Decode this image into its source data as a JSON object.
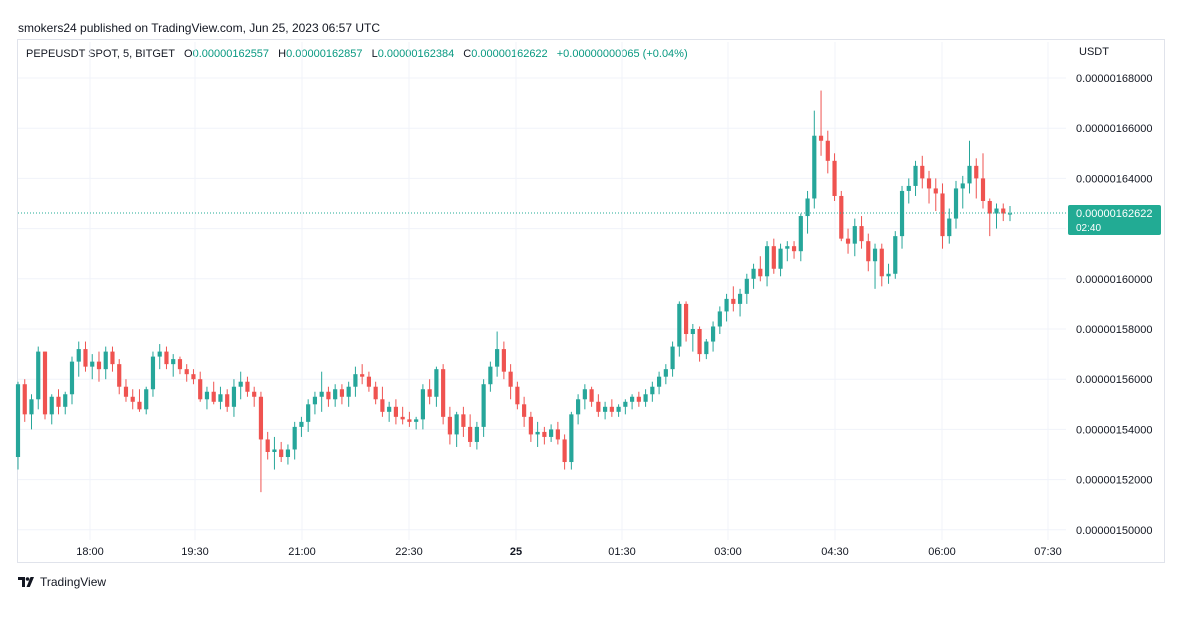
{
  "header": {
    "publisher_line": "smokers24 published on TradingView.com, Jun 25, 2023 06:57 UTC"
  },
  "legend": {
    "symbol": "PEPEUSDT SPOT, 5, BITGET",
    "open_key": "O",
    "open": "0.00000162557",
    "high_key": "H",
    "high": "0.00000162857",
    "low_key": "L",
    "low": "0.00000162384",
    "close_key": "C",
    "close": "0.00000162622",
    "change": "+0.00000000065 (+0.04%)"
  },
  "currency": "USDT",
  "footer": {
    "logo_icon": "tradingview-logo-icon",
    "brand": "TradingView"
  },
  "colors": {
    "up": "#26a69a",
    "down": "#ef5350",
    "grid": "#f0f3fa",
    "price_tag": "#22ab94"
  },
  "chart_data": {
    "type": "candlestick",
    "y_unit": "USDT",
    "ylim": [
      1.49e-06,
      1.69e-06
    ],
    "y_ticks": [
      1.5e-06,
      1.52e-06,
      1.54e-06,
      1.56e-06,
      1.58e-06,
      1.6e-06,
      1.62e-06,
      1.64e-06,
      1.66e-06,
      1.68e-06
    ],
    "y_tick_labels": [
      "0.00000150000",
      "0.00000152000",
      "0.00000154000",
      "0.00000156000",
      "0.00000158000",
      "0.00000160000",
      "0.00000162000",
      "0.00000164000",
      "0.00000166000",
      "0.00000168000"
    ],
    "x_ticks": [
      {
        "label": "18:00",
        "bold": false
      },
      {
        "label": "19:30",
        "bold": false
      },
      {
        "label": "21:00",
        "bold": false
      },
      {
        "label": "22:30",
        "bold": false
      },
      {
        "label": "25",
        "bold": true
      },
      {
        "label": "01:30",
        "bold": false
      },
      {
        "label": "03:00",
        "bold": false
      },
      {
        "label": "04:30",
        "bold": false
      },
      {
        "label": "06:00",
        "bold": false
      },
      {
        "label": "07:30",
        "bold": false
      }
    ],
    "last_price": {
      "value": 1.62622e-06,
      "label": "0.00000162622",
      "countdown": "02:40"
    },
    "grid": true,
    "candles": [
      [
        1.529,
        1.559,
        1.524,
        1.558
      ],
      [
        1.558,
        1.56,
        1.543,
        1.546
      ],
      [
        1.546,
        1.554,
        1.54,
        1.552
      ],
      [
        1.552,
        1.573,
        1.548,
        1.571
      ],
      [
        1.571,
        1.571,
        1.544,
        1.546
      ],
      [
        1.546,
        1.554,
        1.542,
        1.553
      ],
      [
        1.553,
        1.556,
        1.546,
        1.549
      ],
      [
        1.549,
        1.555,
        1.546,
        1.554
      ],
      [
        1.554,
        1.569,
        1.55,
        1.567
      ],
      [
        1.567,
        1.575,
        1.561,
        1.572
      ],
      [
        1.572,
        1.575,
        1.563,
        1.565
      ],
      [
        1.565,
        1.57,
        1.56,
        1.567
      ],
      [
        1.567,
        1.571,
        1.559,
        1.564
      ],
      [
        1.564,
        1.573,
        1.56,
        1.571
      ],
      [
        1.571,
        1.573,
        1.563,
        1.566
      ],
      [
        1.566,
        1.568,
        1.554,
        1.557
      ],
      [
        1.557,
        1.56,
        1.551,
        1.553
      ],
      [
        1.553,
        1.556,
        1.548,
        1.551
      ],
      [
        1.551,
        1.556,
        1.547,
        1.548
      ],
      [
        1.548,
        1.557,
        1.546,
        1.556
      ],
      [
        1.556,
        1.571,
        1.553,
        1.569
      ],
      [
        1.569,
        1.574,
        1.564,
        1.571
      ],
      [
        1.571,
        1.573,
        1.564,
        1.566
      ],
      [
        1.566,
        1.57,
        1.561,
        1.568
      ],
      [
        1.568,
        1.569,
        1.562,
        1.564
      ],
      [
        1.564,
        1.566,
        1.559,
        1.562
      ],
      [
        1.562,
        1.564,
        1.558,
        1.56
      ],
      [
        1.56,
        1.563,
        1.551,
        1.552
      ],
      [
        1.552,
        1.557,
        1.548,
        1.555
      ],
      [
        1.555,
        1.559,
        1.55,
        1.551
      ],
      [
        1.551,
        1.557,
        1.548,
        1.554
      ],
      [
        1.554,
        1.556,
        1.547,
        1.549
      ],
      [
        1.549,
        1.56,
        1.545,
        1.557
      ],
      [
        1.557,
        1.563,
        1.552,
        1.559
      ],
      [
        1.559,
        1.561,
        1.553,
        1.555
      ],
      [
        1.555,
        1.557,
        1.549,
        1.553
      ],
      [
        1.553,
        1.555,
        1.515,
        1.536
      ],
      [
        1.536,
        1.539,
        1.528,
        1.531
      ],
      [
        1.531,
        1.537,
        1.524,
        1.532
      ],
      [
        1.532,
        1.535,
        1.527,
        1.529
      ],
      [
        1.529,
        1.534,
        1.526,
        1.532
      ],
      [
        1.532,
        1.543,
        1.528,
        1.541
      ],
      [
        1.541,
        1.545,
        1.537,
        1.543
      ],
      [
        1.543,
        1.552,
        1.539,
        1.55
      ],
      [
        1.55,
        1.555,
        1.546,
        1.553
      ],
      [
        1.553,
        1.563,
        1.547,
        1.555
      ],
      [
        1.555,
        1.557,
        1.549,
        1.552
      ],
      [
        1.552,
        1.558,
        1.549,
        1.556
      ],
      [
        1.556,
        1.558,
        1.55,
        1.553
      ],
      [
        1.553,
        1.559,
        1.549,
        1.557
      ],
      [
        1.557,
        1.565,
        1.553,
        1.562
      ],
      [
        1.562,
        1.566,
        1.558,
        1.561
      ],
      [
        1.561,
        1.563,
        1.555,
        1.557
      ],
      [
        1.557,
        1.559,
        1.55,
        1.552
      ],
      [
        1.552,
        1.557,
        1.545,
        1.547
      ],
      [
        1.547,
        1.551,
        1.543,
        1.549
      ],
      [
        1.549,
        1.552,
        1.542,
        1.545
      ],
      [
        1.545,
        1.549,
        1.542,
        1.544
      ],
      [
        1.544,
        1.547,
        1.541,
        1.543
      ],
      [
        1.543,
        1.545,
        1.54,
        1.544
      ],
      [
        1.544,
        1.558,
        1.54,
        1.556
      ],
      [
        1.556,
        1.56,
        1.55,
        1.553
      ],
      [
        1.553,
        1.565,
        1.549,
        1.564
      ],
      [
        1.564,
        1.566,
        1.542,
        1.545
      ],
      [
        1.545,
        1.549,
        1.534,
        1.538
      ],
      [
        1.538,
        1.547,
        1.533,
        1.546
      ],
      [
        1.546,
        1.549,
        1.537,
        1.541
      ],
      [
        1.541,
        1.546,
        1.533,
        1.535
      ],
      [
        1.535,
        1.543,
        1.532,
        1.541
      ],
      [
        1.541,
        1.56,
        1.537,
        1.558
      ],
      [
        1.558,
        1.567,
        1.555,
        1.565
      ],
      [
        1.565,
        1.579,
        1.561,
        1.572
      ],
      [
        1.572,
        1.575,
        1.56,
        1.563
      ],
      [
        1.563,
        1.566,
        1.552,
        1.557
      ],
      [
        1.557,
        1.559,
        1.548,
        1.55
      ],
      [
        1.55,
        1.553,
        1.541,
        1.545
      ],
      [
        1.545,
        1.547,
        1.535,
        1.538
      ],
      [
        1.538,
        1.543,
        1.533,
        1.539
      ],
      [
        1.539,
        1.541,
        1.534,
        1.537
      ],
      [
        1.537,
        1.542,
        1.535,
        1.54
      ],
      [
        1.54,
        1.543,
        1.534,
        1.536
      ],
      [
        1.536,
        1.538,
        1.524,
        1.527
      ],
      [
        1.527,
        1.547,
        1.524,
        1.546
      ],
      [
        1.546,
        1.554,
        1.542,
        1.552
      ],
      [
        1.552,
        1.558,
        1.548,
        1.556
      ],
      [
        1.556,
        1.557,
        1.549,
        1.551
      ],
      [
        1.551,
        1.554,
        1.545,
        1.547
      ],
      [
        1.547,
        1.551,
        1.544,
        1.549
      ],
      [
        1.549,
        1.552,
        1.545,
        1.547
      ],
      [
        1.547,
        1.55,
        1.545,
        1.549
      ],
      [
        1.549,
        1.552,
        1.546,
        1.551
      ],
      [
        1.551,
        1.554,
        1.548,
        1.553
      ],
      [
        1.553,
        1.555,
        1.549,
        1.551
      ],
      [
        1.551,
        1.556,
        1.549,
        1.554
      ],
      [
        1.554,
        1.559,
        1.551,
        1.557
      ],
      [
        1.557,
        1.563,
        1.554,
        1.561
      ],
      [
        1.561,
        1.566,
        1.558,
        1.564
      ],
      [
        1.564,
        1.575,
        1.561,
        1.573
      ],
      [
        1.573,
        1.591,
        1.569,
        1.59
      ],
      [
        1.59,
        1.591,
        1.575,
        1.578
      ],
      [
        1.578,
        1.582,
        1.571,
        1.58
      ],
      [
        1.58,
        1.581,
        1.567,
        1.57
      ],
      [
        1.57,
        1.576,
        1.568,
        1.575
      ],
      [
        1.575,
        1.583,
        1.571,
        1.581
      ],
      [
        1.581,
        1.589,
        1.578,
        1.587
      ],
      [
        1.587,
        1.594,
        1.583,
        1.592
      ],
      [
        1.592,
        1.597,
        1.587,
        1.59
      ],
      [
        1.59,
        1.596,
        1.585,
        1.594
      ],
      [
        1.594,
        1.602,
        1.59,
        1.6
      ],
      [
        1.6,
        1.606,
        1.596,
        1.604
      ],
      [
        1.604,
        1.609,
        1.599,
        1.601
      ],
      [
        1.601,
        1.615,
        1.597,
        1.613
      ],
      [
        1.613,
        1.616,
        1.602,
        1.604
      ],
      [
        1.604,
        1.614,
        1.601,
        1.612
      ],
      [
        1.612,
        1.615,
        1.607,
        1.613
      ],
      [
        1.613,
        1.615,
        1.608,
        1.611
      ],
      [
        1.611,
        1.626,
        1.607,
        1.625
      ],
      [
        1.625,
        1.635,
        1.618,
        1.632
      ],
      [
        1.632,
        1.667,
        1.628,
        1.657
      ],
      [
        1.657,
        1.675,
        1.649,
        1.655
      ],
      [
        1.655,
        1.659,
        1.642,
        1.647
      ],
      [
        1.647,
        1.65,
        1.631,
        1.633
      ],
      [
        1.633,
        1.635,
        1.615,
        1.616
      ],
      [
        1.616,
        1.62,
        1.61,
        1.614
      ],
      [
        1.614,
        1.624,
        1.609,
        1.621
      ],
      [
        1.621,
        1.625,
        1.612,
        1.615
      ],
      [
        1.615,
        1.618,
        1.603,
        1.607
      ],
      [
        1.607,
        1.614,
        1.596,
        1.612
      ],
      [
        1.612,
        1.614,
        1.597,
        1.601
      ],
      [
        1.601,
        1.606,
        1.598,
        1.602
      ],
      [
        1.602,
        1.619,
        1.6,
        1.617
      ],
      [
        1.617,
        1.637,
        1.612,
        1.635
      ],
      [
        1.635,
        1.64,
        1.63,
        1.637
      ],
      [
        1.637,
        1.647,
        1.633,
        1.645
      ],
      [
        1.645,
        1.649,
        1.636,
        1.64
      ],
      [
        1.64,
        1.643,
        1.63,
        1.636
      ],
      [
        1.636,
        1.64,
        1.627,
        1.634
      ],
      [
        1.634,
        1.638,
        1.612,
        1.617
      ],
      [
        1.617,
        1.628,
        1.614,
        1.624
      ],
      [
        1.624,
        1.639,
        1.62,
        1.636
      ],
      [
        1.636,
        1.641,
        1.628,
        1.638
      ],
      [
        1.638,
        1.655,
        1.634,
        1.645
      ],
      [
        1.645,
        1.648,
        1.632,
        1.64
      ],
      [
        1.64,
        1.65,
        1.628,
        1.631
      ],
      [
        1.631,
        1.632,
        1.617,
        1.626
      ],
      [
        1.626,
        1.63,
        1.62,
        1.628
      ],
      [
        1.628,
        1.63,
        1.623,
        1.626
      ],
      [
        1.626,
        1.629,
        1.623,
        1.626
      ]
    ]
  }
}
